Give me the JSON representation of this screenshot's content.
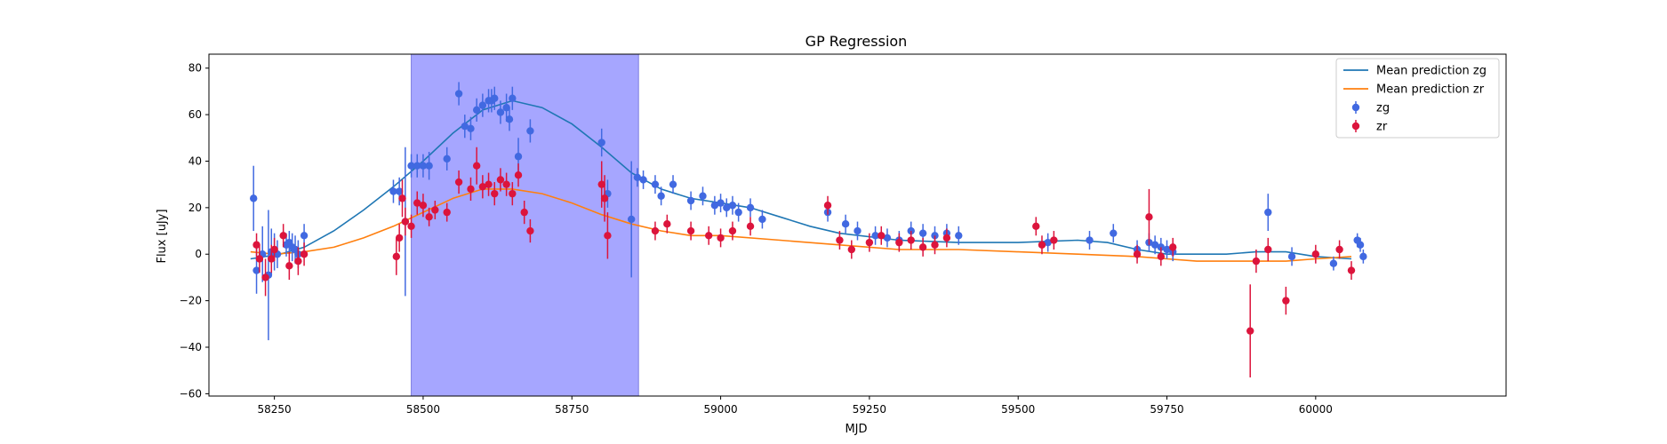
{
  "chart_data": {
    "type": "scatter",
    "title": "GP Regression",
    "xlabel": "MJD",
    "ylabel": "Flux [uJy]",
    "xlim": [
      58140,
      60320
    ],
    "ylim": [
      -61,
      86
    ],
    "xticks": [
      58250,
      58500,
      58750,
      59000,
      59250,
      59500,
      59750,
      60000
    ],
    "xtick_labels": [
      "58250",
      "58500",
      "58750",
      "59000",
      "59250",
      "59500",
      "59750",
      "60000"
    ],
    "yticks": [
      -60,
      -40,
      -20,
      0,
      20,
      40,
      60,
      80
    ],
    "ytick_labels": [
      "−60",
      "−40",
      "−20",
      "0",
      "20",
      "40",
      "60",
      "80"
    ],
    "grid": false,
    "legend_position": "top-right",
    "shaded_region": {
      "x": [
        58480,
        58862
      ],
      "color": "#a6a6ff"
    },
    "series": [
      {
        "name": "Mean prediction zg",
        "kind": "line",
        "color": "#1f77b4",
        "x": [
          58210,
          58260,
          58300,
          58350,
          58400,
          58450,
          58500,
          58550,
          58600,
          58650,
          58700,
          58750,
          58800,
          58850,
          58900,
          58950,
          59000,
          59050,
          59100,
          59150,
          59200,
          59300,
          59400,
          59500,
          59600,
          59650,
          59700,
          59750,
          59800,
          59850,
          59900,
          59950,
          60000,
          60060
        ],
        "y": [
          -2,
          0,
          3,
          10,
          19,
          29,
          40,
          52,
          62,
          66,
          63,
          56,
          46,
          35,
          28,
          24,
          22,
          20,
          16,
          12,
          9,
          6,
          5,
          5,
          6,
          5,
          2,
          0,
          0,
          0,
          1,
          1,
          -1,
          -2
        ]
      },
      {
        "name": "Mean prediction zr",
        "kind": "line",
        "color": "#ff7f0e",
        "x": [
          58210,
          58250,
          58300,
          58350,
          58400,
          58450,
          58500,
          58550,
          58600,
          58650,
          58700,
          58750,
          58800,
          58850,
          58900,
          58950,
          59000,
          59100,
          59200,
          59300,
          59400,
          59500,
          59600,
          59700,
          59750,
          59800,
          59850,
          59900,
          59950,
          60000,
          60060
        ],
        "y": [
          1,
          0,
          1,
          3,
          7,
          12,
          18,
          24,
          28,
          28,
          26,
          22,
          17,
          13,
          10,
          8,
          8,
          6,
          4,
          2,
          2,
          1,
          0,
          -1,
          -2,
          -3,
          -3,
          -3,
          -3,
          -2,
          -1
        ]
      },
      {
        "name": "zg",
        "kind": "errorbar",
        "color": "#4169e1",
        "x": [
          58215,
          58220,
          58230,
          58240,
          58245,
          58250,
          58255,
          58270,
          58275,
          58280,
          58285,
          58290,
          58300,
          58450,
          58460,
          58470,
          58480,
          58490,
          58500,
          58510,
          58540,
          58560,
          58570,
          58580,
          58590,
          58600,
          58610,
          58615,
          58620,
          58630,
          58640,
          58645,
          58650,
          58660,
          58680,
          58800,
          58810,
          58850,
          58860,
          58870,
          58890,
          58900,
          58920,
          58950,
          58970,
          58990,
          59000,
          59010,
          59020,
          59030,
          59050,
          59070,
          59180,
          59210,
          59230,
          59260,
          59280,
          59300,
          59320,
          59340,
          59360,
          59380,
          59400,
          59550,
          59620,
          59660,
          59700,
          59720,
          59730,
          59740,
          59750,
          59760,
          59920,
          59960,
          60030,
          60070,
          60075,
          60080
        ],
        "y": [
          24,
          -7,
          0,
          -9,
          1,
          1,
          0,
          4,
          5,
          3,
          2,
          0,
          8,
          27,
          27,
          14,
          38,
          38,
          38,
          38,
          41,
          69,
          55,
          54,
          62,
          64,
          66,
          66,
          67,
          61,
          63,
          58,
          67,
          42,
          53,
          48,
          26,
          15,
          33,
          32,
          30,
          25,
          30,
          23,
          25,
          21,
          22,
          20,
          21,
          18,
          20,
          15,
          18,
          13,
          10,
          8,
          7,
          6,
          10,
          9,
          8,
          9,
          8,
          5,
          6,
          9,
          2,
          5,
          4,
          3,
          2,
          1,
          18,
          -1,
          -4,
          6,
          4,
          -1
        ],
        "err": [
          14,
          10,
          12,
          28,
          10,
          8,
          6,
          5,
          5,
          6,
          6,
          6,
          5,
          5,
          6,
          32,
          5,
          5,
          5,
          6,
          5,
          5,
          5,
          5,
          5,
          5,
          5,
          5,
          5,
          5,
          6,
          5,
          5,
          8,
          5,
          6,
          6,
          25,
          4,
          4,
          4,
          4,
          4,
          4,
          4,
          4,
          4,
          4,
          4,
          4,
          4,
          4,
          4,
          4,
          4,
          4,
          4,
          4,
          4,
          4,
          4,
          4,
          4,
          4,
          4,
          4,
          4,
          4,
          4,
          4,
          4,
          4,
          8,
          4,
          3,
          3,
          3,
          3
        ]
      },
      {
        "name": "zr",
        "kind": "errorbar",
        "color": "#dc143c",
        "x": [
          58220,
          58225,
          58235,
          58245,
          58250,
          58265,
          58275,
          58290,
          58300,
          58455,
          58460,
          58465,
          58470,
          58480,
          58490,
          58500,
          58510,
          58520,
          58540,
          58560,
          58580,
          58590,
          58600,
          58610,
          58620,
          58630,
          58640,
          58650,
          58660,
          58670,
          58680,
          58800,
          58805,
          58810,
          58890,
          58910,
          58950,
          58980,
          59000,
          59020,
          59050,
          59180,
          59200,
          59220,
          59250,
          59270,
          59300,
          59320,
          59340,
          59360,
          59380,
          59530,
          59540,
          59560,
          59700,
          59720,
          59740,
          59760,
          59890,
          59900,
          59920,
          59950,
          60000,
          60040,
          60060
        ],
        "y": [
          4,
          -2,
          -10,
          -2,
          2,
          8,
          -5,
          -3,
          0,
          -1,
          7,
          24,
          14,
          12,
          22,
          21,
          16,
          19,
          18,
          31,
          28,
          38,
          29,
          30,
          26,
          32,
          30,
          26,
          34,
          18,
          10,
          30,
          24,
          8,
          10,
          13,
          10,
          8,
          7,
          10,
          12,
          21,
          6,
          2,
          5,
          8,
          5,
          6,
          3,
          4,
          7,
          12,
          4,
          6,
          0,
          16,
          -1,
          3,
          -33,
          -3,
          2,
          -20,
          0,
          2,
          -7
        ],
        "err": [
          5,
          6,
          8,
          6,
          5,
          5,
          6,
          6,
          5,
          8,
          6,
          8,
          6,
          5,
          5,
          5,
          4,
          4,
          4,
          5,
          5,
          8,
          5,
          5,
          5,
          5,
          5,
          5,
          5,
          5,
          5,
          10,
          10,
          10,
          4,
          4,
          4,
          4,
          4,
          4,
          4,
          4,
          4,
          4,
          4,
          4,
          4,
          4,
          4,
          4,
          4,
          4,
          4,
          4,
          4,
          12,
          4,
          4,
          20,
          5,
          5,
          6,
          4,
          4,
          4
        ]
      }
    ],
    "legend": [
      {
        "label": "Mean prediction zg",
        "kind": "line",
        "color": "#1f77b4"
      },
      {
        "label": "Mean prediction zr",
        "kind": "line",
        "color": "#ff7f0e"
      },
      {
        "label": "zg",
        "kind": "errorbar",
        "color": "#4169e1"
      },
      {
        "label": "zr",
        "kind": "errorbar",
        "color": "#dc143c"
      }
    ]
  }
}
